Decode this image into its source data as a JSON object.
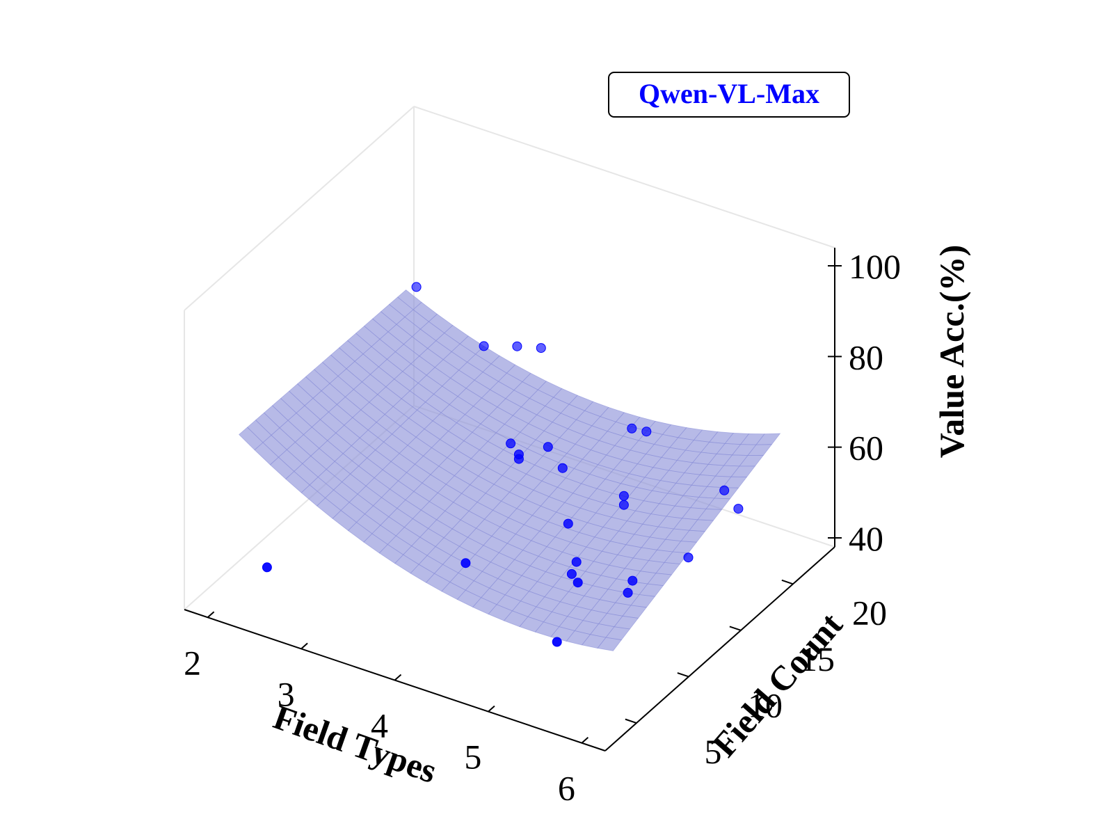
{
  "chart_data": {
    "type": "scatter",
    "subtype": "3d-scatter-with-fitted-surface",
    "legend": {
      "label": "Qwen-VL-Max",
      "position": "top-right"
    },
    "colors": {
      "points": "#0000ff",
      "surface": "#8b8fd9",
      "axis": "#000000",
      "pane_edge": "#e6e6e6",
      "legend_text": "#0000ff"
    },
    "xlabel": "Field Types",
    "ylabel": "Field Count",
    "zlabel": "Value Acc.(%)",
    "x_ticks": [
      "2",
      "3",
      "4",
      "5",
      "6"
    ],
    "y_ticks": [
      "5",
      "10",
      "15",
      "20"
    ],
    "z_ticks": [
      "40",
      "60",
      "80",
      "100"
    ],
    "xlim": [
      1.75,
      6.25
    ],
    "ylim": [
      2,
      24
    ],
    "zlim": [
      38,
      104
    ],
    "grid": false,
    "points": [
      {
        "x": 2.0,
        "y": 22.0,
        "z": 70
      },
      {
        "x": 2.3,
        "y": 5.0,
        "z": 45
      },
      {
        "x": 3.0,
        "y": 19.5,
        "z": 69
      },
      {
        "x": 3.3,
        "y": 20.0,
        "z": 70
      },
      {
        "x": 3.5,
        "y": 20.5,
        "z": 70
      },
      {
        "x": 3.9,
        "y": 14.0,
        "z": 65
      },
      {
        "x": 4.1,
        "y": 13.0,
        "z": 66
      },
      {
        "x": 4.1,
        "y": 13.0,
        "z": 65
      },
      {
        "x": 4.3,
        "y": 14.0,
        "z": 67
      },
      {
        "x": 4.4,
        "y": 14.5,
        "z": 62
      },
      {
        "x": 4.2,
        "y": 7.0,
        "z": 55
      },
      {
        "x": 4.75,
        "y": 18.0,
        "z": 66
      },
      {
        "x": 4.85,
        "y": 18.5,
        "z": 65
      },
      {
        "x": 4.85,
        "y": 11.0,
        "z": 60
      },
      {
        "x": 5.0,
        "y": 15.0,
        "z": 59
      },
      {
        "x": 5.0,
        "y": 15.0,
        "z": 57
      },
      {
        "x": 5.05,
        "y": 10.0,
        "z": 55
      },
      {
        "x": 5.0,
        "y": 10.0,
        "z": 52
      },
      {
        "x": 5.4,
        "y": 7.0,
        "z": 59
      },
      {
        "x": 5.4,
        "y": 5.0,
        "z": 50
      },
      {
        "x": 5.65,
        "y": 10.0,
        "z": 55
      },
      {
        "x": 5.6,
        "y": 10.0,
        "z": 52
      },
      {
        "x": 5.8,
        "y": 14.0,
        "z": 53
      },
      {
        "x": 5.85,
        "y": 17.0,
        "z": 62
      },
      {
        "x": 6.0,
        "y": 17.0,
        "z": 59
      }
    ],
    "surface": {
      "model": "quadratic in field types and field count",
      "x_range": [
        2,
        6
      ],
      "y_range": [
        5,
        21
      ]
    }
  }
}
